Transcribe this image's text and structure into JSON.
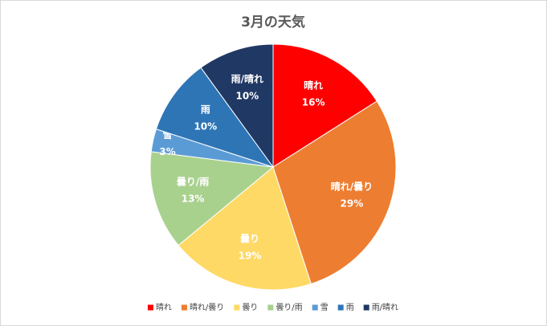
{
  "chart_data": {
    "type": "pie",
    "title": "3月の天気",
    "categories": [
      "晴れ",
      "晴れ/曇り",
      "曇り",
      "曇り/雨",
      "雪",
      "雨",
      "雨/晴れ"
    ],
    "values": [
      16,
      29,
      19,
      13,
      3,
      10,
      10
    ],
    "value_labels": [
      "16%",
      "29%",
      "19%",
      "13%",
      "3%",
      "10%",
      "10%"
    ],
    "colors": [
      "#ff0000",
      "#ed7d31",
      "#ffd966",
      "#a9d18e",
      "#5b9bd5",
      "#2e75b6",
      "#203864"
    ],
    "legend": "bottom"
  }
}
